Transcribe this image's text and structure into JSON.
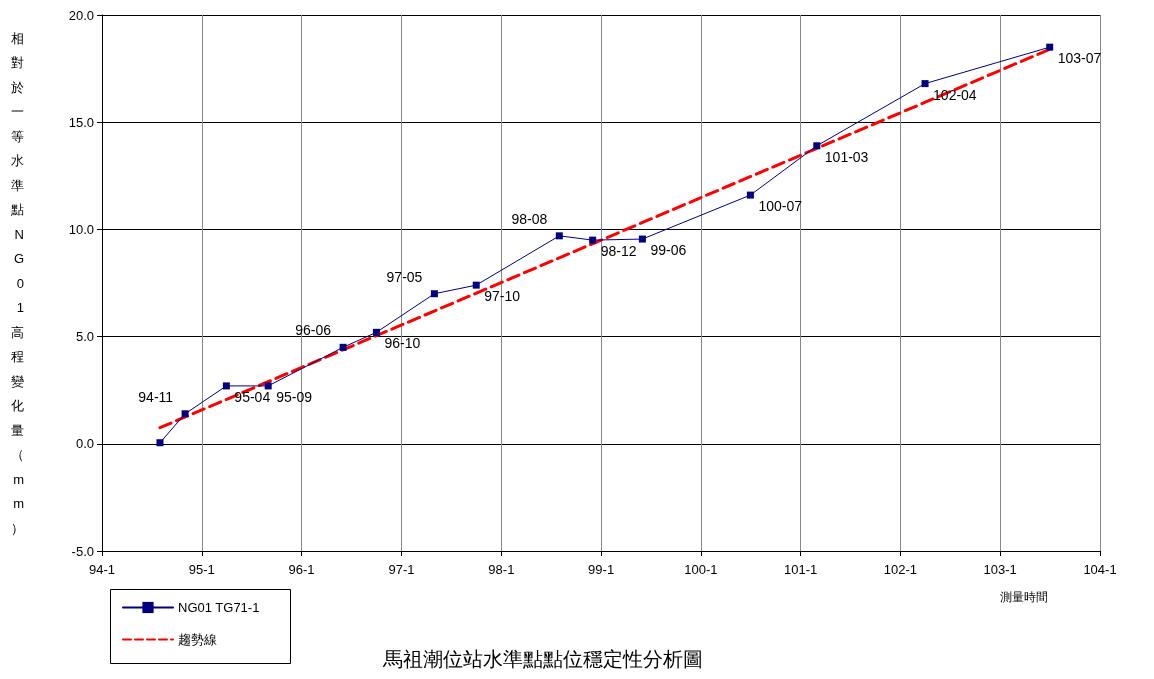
{
  "chart_data": {
    "type": "line",
    "title": "馬祖潮位站水準點點位穩定性分析圖",
    "xlabel": "測量時間",
    "ylabel": "相對於一等水準點NG01高程變化量（mm）",
    "xlim": [
      "0094-01",
      "0104-01"
    ],
    "xticks": [
      {
        "value": "0094-01",
        "label": "94-1"
      },
      {
        "value": "0095-01",
        "label": "95-1"
      },
      {
        "value": "0096-01",
        "label": "96-1"
      },
      {
        "value": "0097-01",
        "label": "97-1"
      },
      {
        "value": "0098-01",
        "label": "98-1"
      },
      {
        "value": "0099-01",
        "label": "99-1"
      },
      {
        "value": "0100-01",
        "label": "100-1"
      },
      {
        "value": "0101-01",
        "label": "101-1"
      },
      {
        "value": "0102-01",
        "label": "102-1"
      },
      {
        "value": "0103-01",
        "label": "103-1"
      },
      {
        "value": "0104-01",
        "label": "104-1"
      }
    ],
    "ylim": [
      -5,
      20
    ],
    "yticks": [
      {
        "value": -5,
        "label": "-5.0"
      },
      {
        "value": 0,
        "label": "0.0"
      },
      {
        "value": 5,
        "label": "5.0"
      },
      {
        "value": 10,
        "label": "10.0"
      },
      {
        "value": 15,
        "label": "15.0"
      },
      {
        "value": 20,
        "label": "20.0"
      }
    ],
    "grid": true,
    "legend": "bottom left",
    "marker": "square",
    "series": [
      {
        "name": "NG01 TG71-1",
        "color": "#000080",
        "x": [
          "0094-08",
          "0094-11",
          "0095-04",
          "0095-09",
          "0096-06",
          "0096-10",
          "0097-05",
          "0097-10",
          "0098-08",
          "0098-12",
          "0099-06",
          "0100-07",
          "0101-03",
          "0102-04",
          "0103-07"
        ],
        "values": [
          0.05,
          1.4,
          2.7,
          2.7,
          4.5,
          5.2,
          7.0,
          7.4,
          9.7,
          9.5,
          9.55,
          11.6,
          13.9,
          16.8,
          18.5
        ]
      },
      {
        "name": "趨勢線",
        "type": "line",
        "color": "#ff0000",
        "line_style": "dashed",
        "marker": "none",
        "x": [
          "0094-08",
          "0103-07"
        ],
        "values": [
          0.75,
          18.4
        ]
      }
    ],
    "annotations": [
      {
        "text": "94-11",
        "x": "0094-11",
        "y": 1.4
      },
      {
        "text": "95-04",
        "x": "0095-04",
        "y": 2.7
      },
      {
        "text": "95-09",
        "x": "0095-09",
        "y": 2.7
      },
      {
        "text": "96-06",
        "x": "0096-06",
        "y": 4.5
      },
      {
        "text": "96-10",
        "x": "0096-10",
        "y": 5.2
      },
      {
        "text": "97-05",
        "x": "0097-05",
        "y": 7.0
      },
      {
        "text": "97-10",
        "x": "0097-10",
        "y": 7.4
      },
      {
        "text": "98-08",
        "x": "0098-08",
        "y": 9.7
      },
      {
        "text": "98-12",
        "x": "0098-12",
        "y": 9.5
      },
      {
        "text": "99-06",
        "x": "0099-06",
        "y": 9.55
      },
      {
        "text": "100-07",
        "x": "0100-07",
        "y": 11.6
      },
      {
        "text": "101-03",
        "x": "0101-03",
        "y": 13.9
      },
      {
        "text": "102-04",
        "x": "0102-04",
        "y": 16.8
      },
      {
        "text": "103-07",
        "x": "0103-07",
        "y": 18.5
      }
    ]
  }
}
